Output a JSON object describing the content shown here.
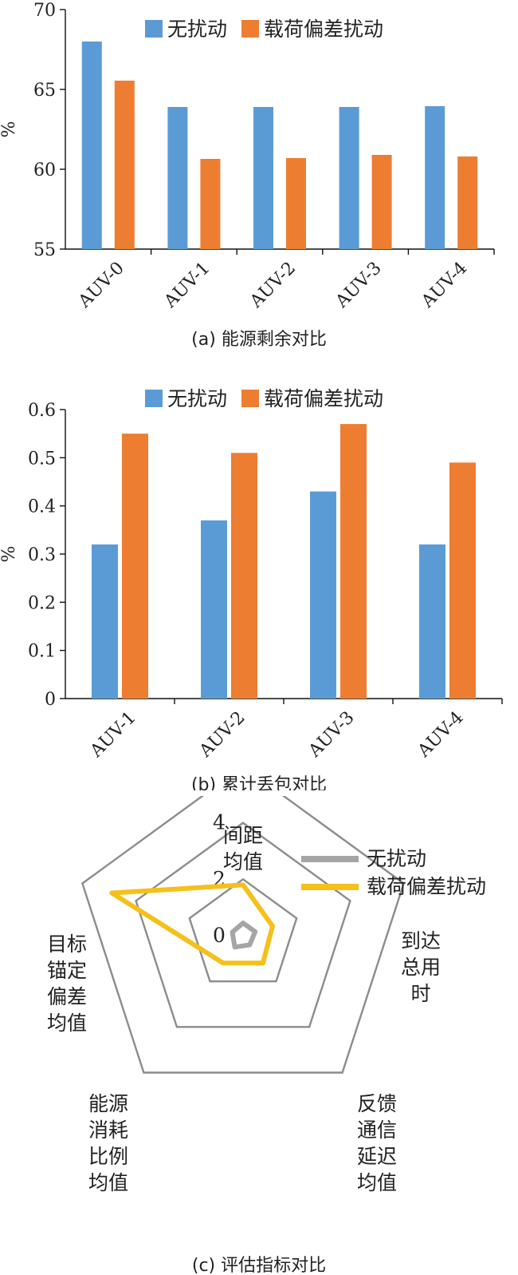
{
  "colors": {
    "no_disturb": "#5B9BD5",
    "load_bias": "#ED7D31",
    "radar_no_disturb": "#A5A5A5",
    "radar_load_bias": "#F5C01A",
    "radar_grid": "#8C8C8C"
  },
  "chart_data": [
    {
      "type": "bar",
      "caption": "(a) 能源剩余对比",
      "ylabel": "%",
      "ylim": [
        55,
        70
      ],
      "yticks": [
        55,
        60,
        65,
        70
      ],
      "categories": [
        "AUV-0",
        "AUV-1",
        "AUV-2",
        "AUV-3",
        "AUV-4"
      ],
      "legend": "top",
      "series": [
        {
          "name": "无扰动",
          "values": [
            68.0,
            63.9,
            63.9,
            63.9,
            63.95
          ]
        },
        {
          "name": "载荷偏差扰动",
          "values": [
            65.55,
            60.65,
            60.7,
            60.9,
            60.8
          ]
        }
      ]
    },
    {
      "type": "bar",
      "caption": "(b) 累计丢包对比",
      "ylabel": "%",
      "ylim": [
        0,
        0.6
      ],
      "yticks": [
        "0",
        "0.1",
        "0.2",
        "0.3",
        "0.4",
        "0.5",
        "0.6"
      ],
      "categories": [
        "AUV-1",
        "AUV-2",
        "AUV-3",
        "AUV-4"
      ],
      "legend": "top",
      "series": [
        {
          "name": "无扰动",
          "values": [
            0.32,
            0.37,
            0.43,
            0.32
          ]
        },
        {
          "name": "载荷偏差扰动",
          "values": [
            0.55,
            0.51,
            0.57,
            0.49
          ]
        }
      ]
    },
    {
      "type": "radar",
      "caption": "(c) 评估指标对比",
      "rlim": [
        0,
        6
      ],
      "rticks": [
        "0",
        "2",
        "4",
        "6"
      ],
      "axes": [
        {
          "lines": [
            "间距",
            "均值"
          ]
        },
        {
          "lines": [
            "到达",
            "总用",
            "时"
          ]
        },
        {
          "lines": [
            "反馈",
            "通信",
            "延迟",
            "均值"
          ]
        },
        {
          "lines": [
            "能源",
            "消耗",
            "比例",
            "均值"
          ]
        },
        {
          "lines": [
            "目标",
            "锚定",
            "偏差",
            "均值"
          ]
        }
      ],
      "legend": "top-right",
      "series": [
        {
          "name": "无扰动",
          "values": [
            0.45,
            0.45,
            0.4,
            0.5,
            0.4
          ]
        },
        {
          "name": "载荷偏差扰动",
          "values": [
            1.8,
            1.1,
            1.2,
            1.2,
            4.9
          ]
        }
      ]
    }
  ]
}
